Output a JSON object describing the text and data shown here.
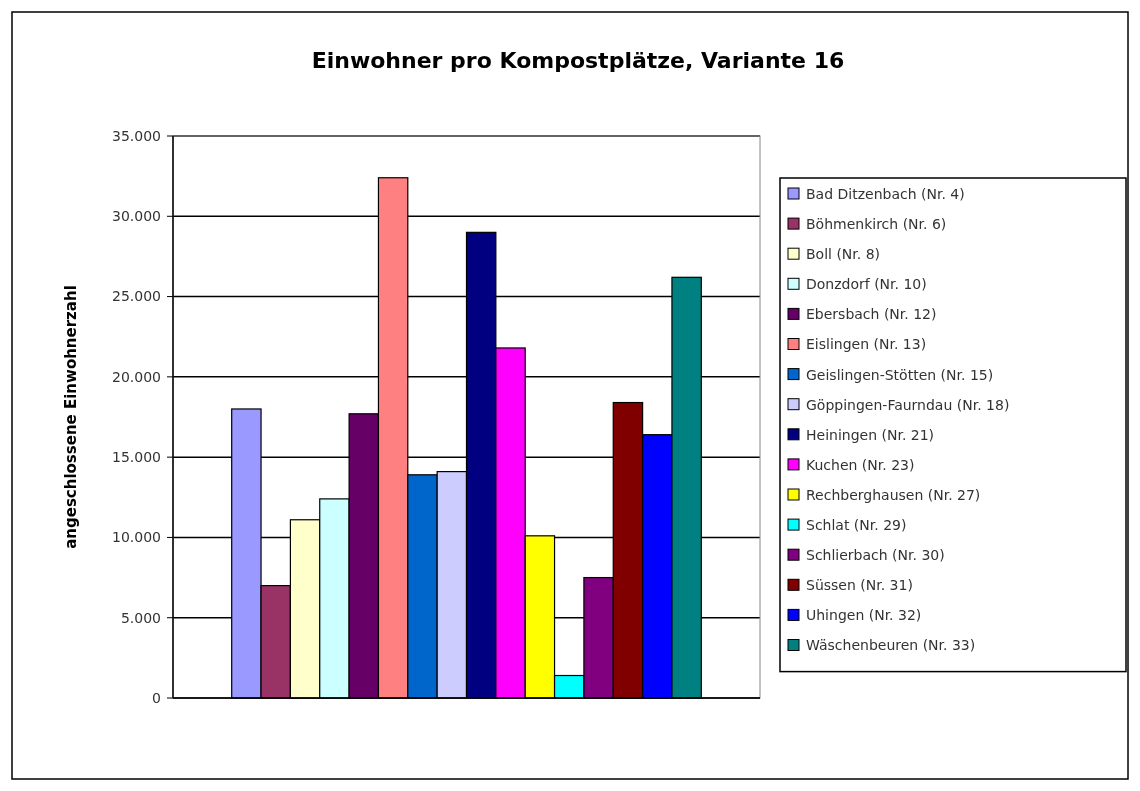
{
  "chart_data": {
    "type": "bar",
    "title": "Einwohner pro Kompostplätze, Variante 16",
    "ylabel": "angeschlossene Einwohnerzahl",
    "categories": [
      null
    ],
    "series": [
      {
        "name": "Bad Ditzenbach (Nr. 4)",
        "color": "#9999ff",
        "values": [
          18000
        ]
      },
      {
        "name": "Böhmenkirch (Nr. 6)",
        "color": "#993366",
        "values": [
          7000
        ]
      },
      {
        "name": "Boll (Nr. 8)",
        "color": "#ffffcc",
        "values": [
          11100
        ]
      },
      {
        "name": "Donzdorf (Nr. 10)",
        "color": "#ccffff",
        "values": [
          12400
        ]
      },
      {
        "name": "Ebersbach (Nr. 12)",
        "color": "#660066",
        "values": [
          17700
        ]
      },
      {
        "name": "Eislingen (Nr. 13)",
        "color": "#ff8080",
        "values": [
          32400
        ]
      },
      {
        "name": "Geislingen-Stötten (Nr. 15)",
        "color": "#0066cc",
        "values": [
          13900
        ]
      },
      {
        "name": "Göppingen-Faurndau (Nr. 18)",
        "color": "#ccccff",
        "values": [
          14100
        ]
      },
      {
        "name": "Heiningen (Nr. 21)",
        "color": "#000080",
        "values": [
          29000
        ]
      },
      {
        "name": "Kuchen (Nr. 23)",
        "color": "#ff00ff",
        "values": [
          21800
        ]
      },
      {
        "name": "Rechberghausen (Nr. 27)",
        "color": "#ffff00",
        "values": [
          10100
        ]
      },
      {
        "name": "Schlat (Nr. 29)",
        "color": "#00ffff",
        "values": [
          1400
        ]
      },
      {
        "name": "Schlierbach (Nr. 30)",
        "color": "#800080",
        "values": [
          7500
        ]
      },
      {
        "name": "Süssen (Nr. 31)",
        "color": "#800000",
        "values": [
          18400
        ]
      },
      {
        "name": "Uhingen (Nr. 32)",
        "color": "#0000ff",
        "values": [
          16400
        ]
      },
      {
        "name": "Wäschenbeuren (Nr. 33)",
        "color": "#008080",
        "values": [
          26200
        ]
      }
    ],
    "ylim": [
      0,
      35000
    ],
    "yticks": [
      {
        "value": 0,
        "label": "0"
      },
      {
        "value": 5000,
        "label": "5.000"
      },
      {
        "value": 10000,
        "label": "10.000"
      },
      {
        "value": 15000,
        "label": "15.000"
      },
      {
        "value": 20000,
        "label": "20.000"
      },
      {
        "value": 25000,
        "label": "25.000"
      },
      {
        "value": 30000,
        "label": "30.000"
      },
      {
        "value": 35000,
        "label": "35.000"
      }
    ],
    "grid": "y",
    "legend": "right"
  }
}
